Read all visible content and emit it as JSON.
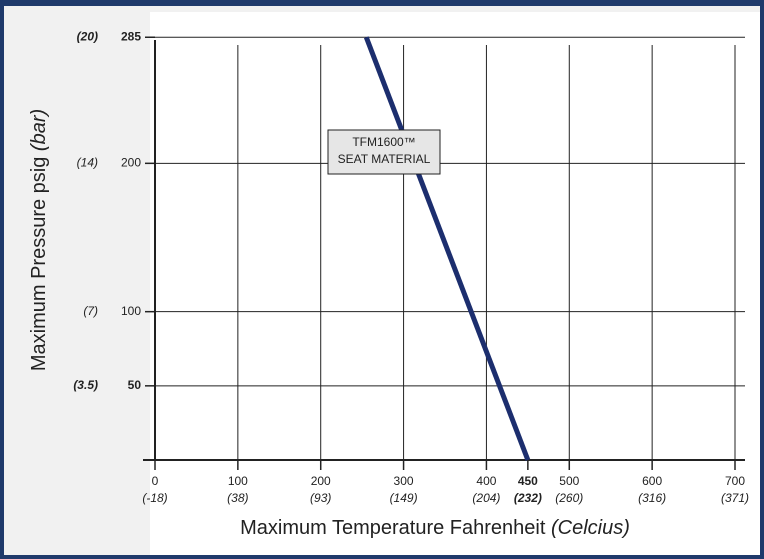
{
  "chart_data": {
    "type": "line",
    "x_label": "Maximum Temperature Fahrenheit",
    "x_label_unit": "(Celcius)",
    "y_label": "Maximum Pressure psig",
    "y_label_unit": "(bar)",
    "x": [
      255,
      450
    ],
    "series": [
      {
        "name": "TFM1600™ SEAT MATERIAL",
        "color": "#1c2e6e",
        "values": [
          285,
          0
        ]
      }
    ],
    "annotation": [
      "TFM1600™",
      "SEAT MATERIAL"
    ],
    "xlim": [
      0,
      700
    ],
    "ylim": [
      0,
      300
    ],
    "xticks": [
      0,
      100,
      200,
      300,
      400,
      500,
      600,
      700
    ],
    "xtick_sublabels": [
      "(-18)",
      "(38)",
      "(93)",
      "(149)",
      "(204)",
      "(260)",
      "(316)",
      "(371)"
    ],
    "max_temp": {
      "value": 450,
      "sublabel": "(232)"
    },
    "yticks": [
      50,
      100,
      200,
      285
    ],
    "ytick_sublabels": [
      "(3.5)",
      "(7)",
      "(14)",
      "(20)"
    ],
    "bold_yticks": [
      50,
      285
    ],
    "grid": true
  }
}
